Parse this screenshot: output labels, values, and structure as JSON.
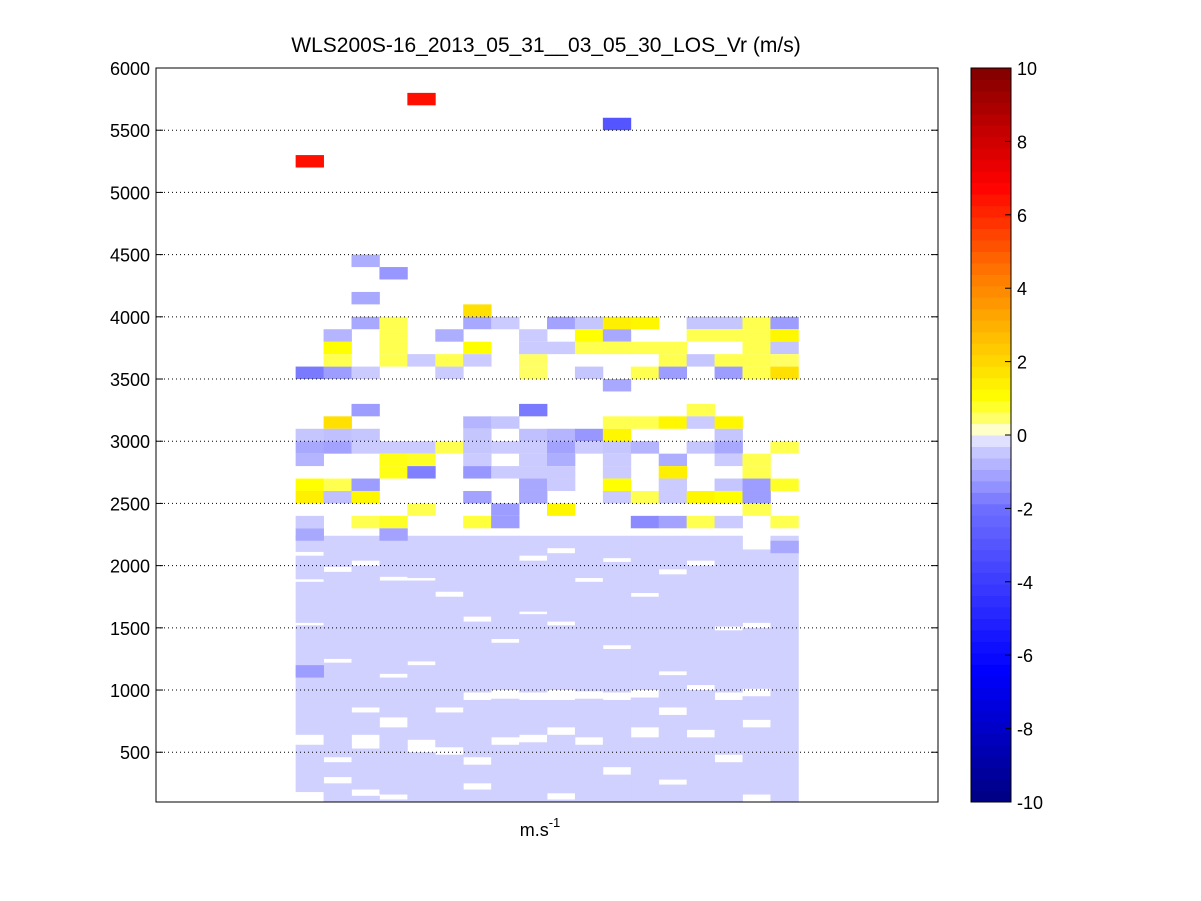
{
  "chart_data": {
    "type": "heatmap",
    "title": "WLS200S-16_2013_05_31__03_05_30_LOS_Vr (m/s)",
    "xlabel": "m.s",
    "xlabel_superscript": "-1",
    "ylabel": "",
    "ylim": [
      100,
      6000
    ],
    "yticks": [
      500,
      1000,
      1500,
      2000,
      2500,
      3000,
      3500,
      4000,
      4500,
      5000,
      5500,
      6000
    ],
    "grid": "y dotted",
    "colorbar": {
      "label": "",
      "range": [
        -10,
        10
      ],
      "ticks": [
        -10,
        -8,
        -6,
        -4,
        -2,
        0,
        2,
        4,
        6,
        8,
        10
      ],
      "colors": {
        "low": "#000080",
        "mid_neg": "#2020ff",
        "zero": "#ffffff",
        "mid_pos": "#ffff00",
        "high": "#800000"
      }
    },
    "columns": 18,
    "column_start": 5,
    "column_count_total": 28,
    "profile_floor": 100,
    "profile_top": 2240,
    "profile_value": -0.3,
    "profile_gaps": [
      {
        "col": 0,
        "ranges": [
          [
            2080,
            2110
          ],
          [
            1870,
            1890
          ],
          [
            1520,
            1540
          ],
          [
            560,
            640
          ],
          [
            100,
            180
          ]
        ]
      },
      {
        "col": 1,
        "ranges": [
          [
            1950,
            1990
          ],
          [
            1220,
            1250
          ],
          [
            420,
            460
          ],
          [
            250,
            300
          ]
        ]
      },
      {
        "col": 2,
        "ranges": [
          [
            2000,
            2040
          ],
          [
            820,
            860
          ],
          [
            530,
            640
          ],
          [
            150,
            200
          ]
        ]
      },
      {
        "col": 3,
        "ranges": [
          [
            1880,
            1910
          ],
          [
            1100,
            1130
          ],
          [
            700,
            780
          ],
          [
            120,
            160
          ]
        ]
      },
      {
        "col": 4,
        "ranges": [
          [
            1880,
            1900
          ],
          [
            1200,
            1230
          ],
          [
            500,
            600
          ]
        ]
      },
      {
        "col": 5,
        "ranges": [
          [
            1750,
            1790
          ],
          [
            820,
            860
          ],
          [
            480,
            540
          ]
        ]
      },
      {
        "col": 6,
        "ranges": [
          [
            1550,
            1590
          ],
          [
            920,
            980
          ],
          [
            400,
            460
          ],
          [
            200,
            250
          ]
        ]
      },
      {
        "col": 7,
        "ranges": [
          [
            1380,
            1410
          ],
          [
            930,
            1000
          ],
          [
            560,
            620
          ]
        ]
      },
      {
        "col": 8,
        "ranges": [
          [
            2040,
            2080
          ],
          [
            1610,
            1630
          ],
          [
            920,
            980
          ],
          [
            580,
            640
          ]
        ]
      },
      {
        "col": 9,
        "ranges": [
          [
            2100,
            2140
          ],
          [
            1520,
            1550
          ],
          [
            920,
            1000
          ],
          [
            640,
            700
          ],
          [
            120,
            170
          ]
        ]
      },
      {
        "col": 10,
        "ranges": [
          [
            1870,
            1900
          ],
          [
            930,
            990
          ],
          [
            560,
            620
          ]
        ]
      },
      {
        "col": 11,
        "ranges": [
          [
            2030,
            2060
          ],
          [
            1330,
            1360
          ],
          [
            920,
            980
          ],
          [
            320,
            380
          ]
        ]
      },
      {
        "col": 12,
        "ranges": [
          [
            1750,
            1780
          ],
          [
            940,
            1000
          ],
          [
            620,
            700
          ]
        ]
      },
      {
        "col": 13,
        "ranges": [
          [
            1930,
            1970
          ],
          [
            1120,
            1150
          ],
          [
            800,
            860
          ],
          [
            240,
            280
          ]
        ]
      },
      {
        "col": 14,
        "ranges": [
          [
            2000,
            2040
          ],
          [
            1000,
            1040
          ],
          [
            620,
            680
          ]
        ]
      },
      {
        "col": 15,
        "ranges": [
          [
            1480,
            1510
          ],
          [
            920,
            980
          ],
          [
            420,
            480
          ]
        ]
      },
      {
        "col": 16,
        "ranges": [
          [
            2130,
            2240
          ],
          [
            1500,
            1540
          ],
          [
            950,
            1010
          ],
          [
            700,
            760
          ],
          [
            100,
            160
          ]
        ]
      }
    ],
    "cells": [
      {
        "col": 0,
        "z": 1150,
        "v": -1.2
      },
      {
        "col": 0,
        "z": 3550,
        "v": -1.8
      },
      {
        "col": 0,
        "z": 3050,
        "v": -0.5
      },
      {
        "col": 0,
        "z": 2950,
        "v": -1.0
      },
      {
        "col": 0,
        "z": 2850,
        "v": -0.8
      },
      {
        "col": 0,
        "z": 2650,
        "v": 1.0
      },
      {
        "col": 0,
        "z": 2550,
        "v": 1.4
      },
      {
        "col": 0,
        "z": 2350,
        "v": -0.4
      },
      {
        "col": 0,
        "z": 2250,
        "v": -1.0
      },
      {
        "col": 0,
        "z": 5250,
        "v": 6.5
      },
      {
        "col": 1,
        "z": 3150,
        "v": 1.8
      },
      {
        "col": 1,
        "z": 3050,
        "v": -0.6
      },
      {
        "col": 1,
        "z": 3550,
        "v": -1.2
      },
      {
        "col": 1,
        "z": 3650,
        "v": 0.6
      },
      {
        "col": 1,
        "z": 3750,
        "v": 1.0
      },
      {
        "col": 1,
        "z": 3850,
        "v": -0.8
      },
      {
        "col": 1,
        "z": 2650,
        "v": 0.6
      },
      {
        "col": 1,
        "z": 2550,
        "v": -0.6
      },
      {
        "col": 1,
        "z": 2950,
        "v": -1.1
      },
      {
        "col": 2,
        "z": 4450,
        "v": -0.9
      },
      {
        "col": 2,
        "z": 4150,
        "v": -1.0
      },
      {
        "col": 2,
        "z": 3950,
        "v": -1.0
      },
      {
        "col": 2,
        "z": 3250,
        "v": -1.2
      },
      {
        "col": 2,
        "z": 3050,
        "v": -0.5
      },
      {
        "col": 2,
        "z": 2950,
        "v": -0.4
      },
      {
        "col": 2,
        "z": 2650,
        "v": -1.2
      },
      {
        "col": 2,
        "z": 2550,
        "v": 1.2
      },
      {
        "col": 2,
        "z": 2350,
        "v": 0.6
      },
      {
        "col": 2,
        "z": 3550,
        "v": -0.4
      },
      {
        "col": 3,
        "z": 4350,
        "v": -1.3
      },
      {
        "col": 3,
        "z": 3950,
        "v": 0.6
      },
      {
        "col": 3,
        "z": 3850,
        "v": 0.6
      },
      {
        "col": 3,
        "z": 3750,
        "v": 0.6
      },
      {
        "col": 3,
        "z": 3650,
        "v": 0.6
      },
      {
        "col": 3,
        "z": 2950,
        "v": -0.4
      },
      {
        "col": 3,
        "z": 2850,
        "v": 0.9
      },
      {
        "col": 3,
        "z": 2750,
        "v": 0.9
      },
      {
        "col": 3,
        "z": 2350,
        "v": 0.8
      },
      {
        "col": 3,
        "z": 2250,
        "v": -1.1
      },
      {
        "col": 4,
        "z": 5750,
        "v": 6.5
      },
      {
        "col": 4,
        "z": 3650,
        "v": -0.4
      },
      {
        "col": 4,
        "z": 2950,
        "v": -0.4
      },
      {
        "col": 4,
        "z": 2850,
        "v": 0.8
      },
      {
        "col": 4,
        "z": 2750,
        "v": -1.7
      },
      {
        "col": 4,
        "z": 2450,
        "v": 0.6
      },
      {
        "col": 5,
        "z": 3850,
        "v": -0.9
      },
      {
        "col": 5,
        "z": 3650,
        "v": 0.6
      },
      {
        "col": 5,
        "z": 3550,
        "v": -0.4
      },
      {
        "col": 5,
        "z": 2950,
        "v": 0.6
      },
      {
        "col": 6,
        "z": 4050,
        "v": 1.8
      },
      {
        "col": 6,
        "z": 3950,
        "v": -1.0
      },
      {
        "col": 6,
        "z": 3750,
        "v": 1.0
      },
      {
        "col": 6,
        "z": 3650,
        "v": -0.4
      },
      {
        "col": 6,
        "z": 3150,
        "v": -0.8
      },
      {
        "col": 6,
        "z": 3050,
        "v": -0.5
      },
      {
        "col": 6,
        "z": 2950,
        "v": -0.5
      },
      {
        "col": 6,
        "z": 2850,
        "v": -0.4
      },
      {
        "col": 6,
        "z": 2750,
        "v": -1.3
      },
      {
        "col": 6,
        "z": 2550,
        "v": -1.1
      },
      {
        "col": 6,
        "z": 2350,
        "v": 0.7
      },
      {
        "col": 7,
        "z": 3950,
        "v": -0.4
      },
      {
        "col": 7,
        "z": 3150,
        "v": -0.5
      },
      {
        "col": 7,
        "z": 2950,
        "v": -0.4
      },
      {
        "col": 7,
        "z": 2750,
        "v": -0.4
      },
      {
        "col": 7,
        "z": 2350,
        "v": -1.2
      },
      {
        "col": 7,
        "z": 2450,
        "v": -1.2
      },
      {
        "col": 8,
        "z": 3250,
        "v": -1.8
      },
      {
        "col": 8,
        "z": 3050,
        "v": -0.6
      },
      {
        "col": 8,
        "z": 2950,
        "v": -0.4
      },
      {
        "col": 8,
        "z": 2850,
        "v": -0.4
      },
      {
        "col": 8,
        "z": 2750,
        "v": -0.4
      },
      {
        "col": 8,
        "z": 2650,
        "v": -1.0
      },
      {
        "col": 8,
        "z": 2550,
        "v": -1.0
      },
      {
        "col": 8,
        "z": 3650,
        "v": 0.5
      },
      {
        "col": 8,
        "z": 3550,
        "v": 0.5
      },
      {
        "col": 8,
        "z": 3850,
        "v": -0.4
      },
      {
        "col": 8,
        "z": 3750,
        "v": -0.4
      },
      {
        "col": 9,
        "z": 3950,
        "v": -1.1
      },
      {
        "col": 9,
        "z": 3050,
        "v": -0.8
      },
      {
        "col": 9,
        "z": 2950,
        "v": -1.1
      },
      {
        "col": 9,
        "z": 2850,
        "v": -0.9
      },
      {
        "col": 9,
        "z": 2750,
        "v": -0.4
      },
      {
        "col": 9,
        "z": 2650,
        "v": -0.4
      },
      {
        "col": 9,
        "z": 2450,
        "v": 1.2
      },
      {
        "col": 9,
        "z": 3750,
        "v": -0.4
      },
      {
        "col": 10,
        "z": 3950,
        "v": -0.5
      },
      {
        "col": 10,
        "z": 3850,
        "v": 1.0
      },
      {
        "col": 10,
        "z": 3750,
        "v": 0.6
      },
      {
        "col": 10,
        "z": 3550,
        "v": -0.5
      },
      {
        "col": 10,
        "z": 3050,
        "v": -1.3
      },
      {
        "col": 10,
        "z": 2950,
        "v": -0.4
      },
      {
        "col": 11,
        "z": 5550,
        "v": -3.0
      },
      {
        "col": 11,
        "z": 3950,
        "v": 1.4
      },
      {
        "col": 11,
        "z": 3850,
        "v": -1.0
      },
      {
        "col": 11,
        "z": 3750,
        "v": 0.6
      },
      {
        "col": 11,
        "z": 3450,
        "v": -1.0
      },
      {
        "col": 11,
        "z": 3150,
        "v": 0.6
      },
      {
        "col": 11,
        "z": 3050,
        "v": 1.2
      },
      {
        "col": 11,
        "z": 2950,
        "v": -0.5
      },
      {
        "col": 11,
        "z": 2850,
        "v": -0.4
      },
      {
        "col": 11,
        "z": 2750,
        "v": -0.4
      },
      {
        "col": 11,
        "z": 2650,
        "v": 1.0
      },
      {
        "col": 11,
        "z": 2550,
        "v": -0.4
      },
      {
        "col": 12,
        "z": 3950,
        "v": 1.2
      },
      {
        "col": 12,
        "z": 3750,
        "v": 0.6
      },
      {
        "col": 12,
        "z": 3550,
        "v": 0.6
      },
      {
        "col": 12,
        "z": 3150,
        "v": 0.6
      },
      {
        "col": 12,
        "z": 2950,
        "v": -0.8
      },
      {
        "col": 12,
        "z": 2550,
        "v": 0.6
      },
      {
        "col": 12,
        "z": 2350,
        "v": -1.5
      },
      {
        "col": 13,
        "z": 3750,
        "v": 0.6
      },
      {
        "col": 13,
        "z": 3650,
        "v": 0.6
      },
      {
        "col": 13,
        "z": 3550,
        "v": -1.2
      },
      {
        "col": 13,
        "z": 3150,
        "v": 1.2
      },
      {
        "col": 13,
        "z": 2850,
        "v": -0.9
      },
      {
        "col": 13,
        "z": 2750,
        "v": 1.4
      },
      {
        "col": 13,
        "z": 2650,
        "v": -0.4
      },
      {
        "col": 13,
        "z": 2550,
        "v": -0.4
      },
      {
        "col": 13,
        "z": 2350,
        "v": -1.1
      },
      {
        "col": 14,
        "z": 3950,
        "v": -0.5
      },
      {
        "col": 14,
        "z": 3850,
        "v": 0.6
      },
      {
        "col": 14,
        "z": 3650,
        "v": -0.5
      },
      {
        "col": 14,
        "z": 3250,
        "v": 0.6
      },
      {
        "col": 14,
        "z": 3150,
        "v": -0.4
      },
      {
        "col": 14,
        "z": 2950,
        "v": -0.5
      },
      {
        "col": 14,
        "z": 2550,
        "v": 1.2
      },
      {
        "col": 14,
        "z": 2350,
        "v": 0.6
      },
      {
        "col": 15,
        "z": 3950,
        "v": -0.5
      },
      {
        "col": 15,
        "z": 3850,
        "v": 0.6
      },
      {
        "col": 15,
        "z": 3650,
        "v": 0.6
      },
      {
        "col": 15,
        "z": 3550,
        "v": -1.2
      },
      {
        "col": 15,
        "z": 3150,
        "v": 1.2
      },
      {
        "col": 15,
        "z": 3050,
        "v": -0.5
      },
      {
        "col": 15,
        "z": 2950,
        "v": -1.0
      },
      {
        "col": 15,
        "z": 2850,
        "v": -0.4
      },
      {
        "col": 15,
        "z": 2650,
        "v": -0.5
      },
      {
        "col": 15,
        "z": 2550,
        "v": 1.0
      },
      {
        "col": 15,
        "z": 2350,
        "v": -0.4
      },
      {
        "col": 16,
        "z": 3950,
        "v": 0.6
      },
      {
        "col": 16,
        "z": 3850,
        "v": 0.6
      },
      {
        "col": 16,
        "z": 3750,
        "v": 0.6
      },
      {
        "col": 16,
        "z": 3650,
        "v": 0.6
      },
      {
        "col": 16,
        "z": 3550,
        "v": 0.6
      },
      {
        "col": 16,
        "z": 2850,
        "v": 0.6
      },
      {
        "col": 16,
        "z": 2750,
        "v": 0.6
      },
      {
        "col": 16,
        "z": 2650,
        "v": -1.2
      },
      {
        "col": 16,
        "z": 2550,
        "v": -1.2
      },
      {
        "col": 16,
        "z": 2450,
        "v": 0.6
      },
      {
        "col": 17,
        "z": 3950,
        "v": -1.2
      },
      {
        "col": 17,
        "z": 3850,
        "v": 1.2
      },
      {
        "col": 17,
        "z": 3750,
        "v": -0.5
      },
      {
        "col": 17,
        "z": 3650,
        "v": 0.5
      },
      {
        "col": 17,
        "z": 3550,
        "v": 1.8
      },
      {
        "col": 17,
        "z": 2950,
        "v": 0.6
      },
      {
        "col": 17,
        "z": 2650,
        "v": 0.8
      },
      {
        "col": 17,
        "z": 2350,
        "v": 0.6
      },
      {
        "col": 17,
        "z": 2150,
        "v": -1.0
      }
    ]
  }
}
